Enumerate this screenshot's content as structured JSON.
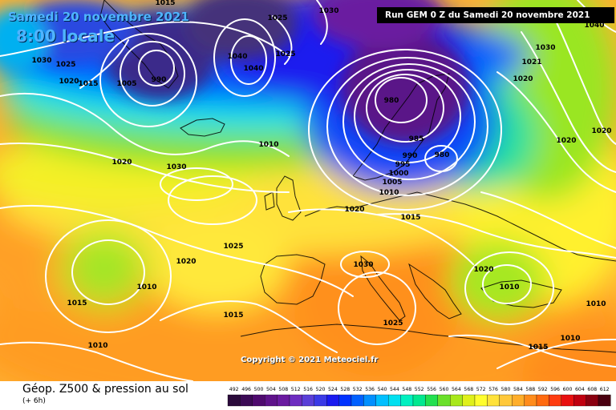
{
  "header": {
    "date_text": "Samedi 20 novembre 2021",
    "time_text": "8:00 locale",
    "run_text": "Run GEM 0 Z du Samedi 20 novembre 2021"
  },
  "footer": {
    "product_title": "Géop. Z500 & pression au sol",
    "product_subtitle": "(+ 6h)",
    "copyright": "Copyright © 2021 Meteociel.fr"
  },
  "legend": {
    "values": [
      "492",
      "496",
      "500",
      "504",
      "508",
      "512",
      "516",
      "520",
      "524",
      "528",
      "532",
      "536",
      "540",
      "544",
      "548",
      "552",
      "556",
      "560",
      "564",
      "568",
      "572",
      "576",
      "580",
      "584",
      "588",
      "592",
      "596",
      "600",
      "604",
      "608",
      "612"
    ],
    "colors": [
      "#2a0a3a",
      "#3b0a55",
      "#4e0a6e",
      "#5e128a",
      "#6a1aa0",
      "#6d2cc0",
      "#5a3fd8",
      "#3a3ae6",
      "#1a1aef",
      "#0032ff",
      "#0060ff",
      "#0090ff",
      "#00bfff",
      "#00e0f0",
      "#00f0c0",
      "#00e890",
      "#22e050",
      "#6ae02a",
      "#a8e81a",
      "#dff01a",
      "#fffe2e",
      "#ffe23a",
      "#ffc83a",
      "#ffae2a",
      "#ff8c1c",
      "#ff6a10",
      "#ff3c10",
      "#e81010",
      "#c00010",
      "#8a0010",
      "#4a0010"
    ]
  },
  "isobar_labels": [
    {
      "text": "1015"
    },
    {
      "text": "1025"
    },
    {
      "text": "1030"
    },
    {
      "text": "1040"
    },
    {
      "text": "1030"
    },
    {
      "text": "1025"
    },
    {
      "text": "1020"
    },
    {
      "text": "1015"
    },
    {
      "text": "1005"
    },
    {
      "text": "990"
    },
    {
      "text": "1040"
    },
    {
      "text": "1025"
    },
    {
      "text": "1030"
    },
    {
      "text": "1021"
    },
    {
      "text": "1020"
    },
    {
      "text": "1020"
    },
    {
      "text": "1030"
    },
    {
      "text": "1010"
    },
    {
      "text": "980"
    },
    {
      "text": "985"
    },
    {
      "text": "990"
    },
    {
      "text": "995"
    },
    {
      "text": "1000"
    },
    {
      "text": "1005"
    },
    {
      "text": "980"
    },
    {
      "text": "1010"
    },
    {
      "text": "1020"
    },
    {
      "text": "1015"
    },
    {
      "text": "1020"
    },
    {
      "text": "1020"
    },
    {
      "text": "1025"
    },
    {
      "text": "1020"
    },
    {
      "text": "1010"
    },
    {
      "text": "1030"
    },
    {
      "text": "1020"
    },
    {
      "text": "1015"
    },
    {
      "text": "1010"
    },
    {
      "text": "1015"
    },
    {
      "text": "1010"
    },
    {
      "text": "1025"
    },
    {
      "text": "1015"
    },
    {
      "text": "1010"
    },
    {
      "text": "1010"
    },
    {
      "text": "1040"
    }
  ]
}
